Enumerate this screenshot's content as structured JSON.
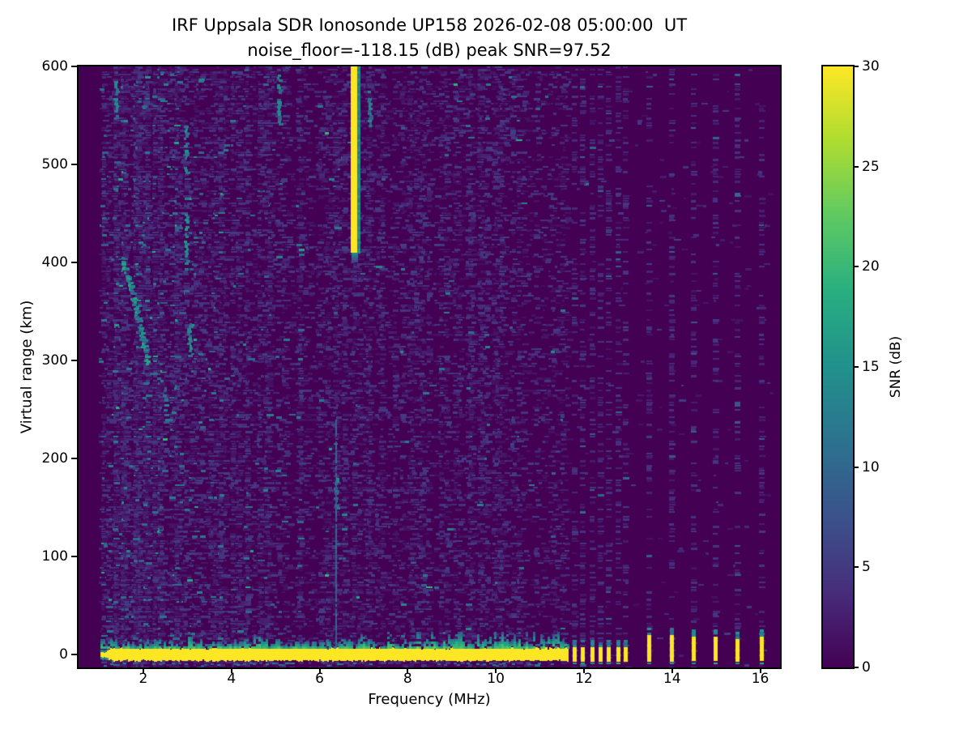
{
  "chart_data": {
    "type": "heatmap",
    "title": "IRF Uppsala SDR Ionosonde UP158 2026-02-08 05:00:00  UT",
    "subtitle": "noise_floor=-118.15 (dB) peak SNR=97.52",
    "noise_floor_db": -118.15,
    "peak_snr_db": 97.52,
    "xlabel": "Frequency (MHz)",
    "ylabel": "Virtual range (km)",
    "xlim": [
      0.53,
      16.45
    ],
    "ylim": [
      -13,
      600
    ],
    "x_ticks": [
      2,
      4,
      6,
      8,
      10,
      12,
      14,
      16
    ],
    "y_ticks": [
      0,
      100,
      200,
      300,
      400,
      500,
      600
    ],
    "colorbar": {
      "label": "SNR (dB)",
      "min": 0,
      "max": 30,
      "ticks": [
        0,
        5,
        10,
        15,
        20,
        25,
        30
      ]
    },
    "colormap": "viridis",
    "colormap_stops": [
      [
        0.0,
        "#440154"
      ],
      [
        0.125,
        "#472d7b"
      ],
      [
        0.25,
        "#3b528b"
      ],
      [
        0.375,
        "#2c728e"
      ],
      [
        0.5,
        "#21918c"
      ],
      [
        0.625,
        "#28ae80"
      ],
      [
        0.75,
        "#5ec962"
      ],
      [
        0.875,
        "#addc30"
      ],
      [
        1.0,
        "#fde725"
      ]
    ],
    "data_freq_range": [
      1.0,
      16.25
    ],
    "features": {
      "interference_stripe": {
        "f_yellow1": 6.71,
        "f_yellow2": 6.86,
        "f_teal_edge": 6.93,
        "r_top": 600,
        "r_bottom": 410,
        "snr": 30,
        "edge_snr": 13
      },
      "faint_vertical_line": {
        "f": 6.35,
        "r_top": 240,
        "r_bottom": 2,
        "snr": 10
      },
      "echo_trace": {
        "snr_range": [
          9,
          18
        ],
        "points": [
          [
            1.5,
            404
          ],
          [
            1.58,
            392
          ],
          [
            1.65,
            382
          ],
          [
            1.72,
            370
          ],
          [
            1.78,
            358
          ],
          [
            1.84,
            346
          ],
          [
            1.9,
            334
          ],
          [
            1.96,
            322
          ],
          [
            2.02,
            310
          ],
          [
            2.07,
            299
          ]
        ]
      },
      "ground_band": {
        "f1": 1.02,
        "f2": 11.62,
        "r_top": 8,
        "r_bottom": -7,
        "snr": 30,
        "fringe_max_km": 22,
        "fringe_spikes": [
          3.03,
          4.55,
          6.93,
          7.55
        ],
        "tall_fringe_f1": 8.15,
        "tall_fringe_f2": 11.5
      },
      "rfi_blips": [
        {
          "f": 11.78,
          "r_top": 8
        },
        {
          "f": 11.96,
          "r_top": 8
        },
        {
          "f": 12.18,
          "r_top": 8
        },
        {
          "f": 12.37,
          "r_top": 8
        },
        {
          "f": 12.55,
          "r_top": 8
        },
        {
          "f": 12.77,
          "r_top": 8
        },
        {
          "f": 12.94,
          "r_top": 8
        },
        {
          "f": 13.47,
          "r_top": 20
        },
        {
          "f": 13.99,
          "r_top": 20
        },
        {
          "f": 14.49,
          "r_top": 18
        },
        {
          "f": 14.98,
          "r_top": 18
        },
        {
          "f": 15.47,
          "r_top": 16
        },
        {
          "f": 16.03,
          "r_top": 18
        }
      ],
      "rfi_comb": {
        "frequencies": [
          11.78,
          11.96,
          12.18,
          12.37,
          12.55,
          12.77,
          12.94,
          13.47,
          13.99,
          14.49,
          14.98,
          15.47,
          16.03
        ],
        "column_noise_density": 0.32
      },
      "noise_columns": [
        {
          "f": 1.35,
          "s": 2.2
        },
        {
          "f": 1.62,
          "s": 1.6
        },
        {
          "f": 2.02,
          "s": 1.8
        },
        {
          "f": 2.5,
          "s": 1.6
        },
        {
          "f": 2.95,
          "s": 2.6
        },
        {
          "f": 3.3,
          "s": 1.7
        },
        {
          "f": 3.75,
          "s": 1.5
        },
        {
          "f": 4.3,
          "s": 1.7
        },
        {
          "f": 4.75,
          "s": 1.5
        },
        {
          "f": 5.05,
          "s": 2.0
        },
        {
          "f": 5.5,
          "s": 1.5
        },
        {
          "f": 6.0,
          "s": 1.6
        },
        {
          "f": 6.55,
          "s": 2.0
        },
        {
          "f": 7.3,
          "s": 1.8
        },
        {
          "f": 7.85,
          "s": 1.6
        },
        {
          "f": 8.35,
          "s": 1.8
        },
        {
          "f": 8.9,
          "s": 1.5
        },
        {
          "f": 9.35,
          "s": 1.7
        },
        {
          "f": 9.8,
          "s": 1.8
        },
        {
          "f": 10.35,
          "s": 1.6
        },
        {
          "f": 10.9,
          "s": 1.7
        },
        {
          "f": 11.3,
          "s": 1.5
        }
      ],
      "bright_segments": [
        {
          "f": 1.36,
          "r1": 548,
          "r2": 588,
          "snr": 12
        },
        {
          "f": 2.95,
          "r1": 492,
          "r2": 540,
          "snr": 13
        },
        {
          "f": 2.96,
          "r1": 398,
          "r2": 450,
          "snr": 14
        },
        {
          "f": 5.06,
          "r1": 542,
          "r2": 592,
          "snr": 12
        },
        {
          "f": 7.12,
          "r1": 540,
          "r2": 578,
          "snr": 11
        },
        {
          "f": 3.03,
          "r1": 300,
          "r2": 338,
          "snr": 13
        },
        {
          "f": 2.47,
          "r1": 238,
          "r2": 275,
          "snr": 11
        },
        {
          "f": 6.35,
          "r1": 150,
          "r2": 185,
          "snr": 12
        }
      ]
    },
    "render": {
      "seed": 1337,
      "noise_zones": [
        {
          "f1": 1.0,
          "f2": 3.6,
          "density": 0.4,
          "teal": 0.055,
          "green": 0.01
        },
        {
          "f1": 3.6,
          "f2": 7.0,
          "density": 0.3,
          "teal": 0.018,
          "green": 0.003
        },
        {
          "f1": 7.0,
          "f2": 11.62,
          "density": 0.26,
          "teal": 0.008,
          "green": 0.001
        },
        {
          "f1": 11.62,
          "f2": 16.25,
          "density": 0.012,
          "teal": 0.002,
          "green": 0.0
        }
      ]
    }
  }
}
